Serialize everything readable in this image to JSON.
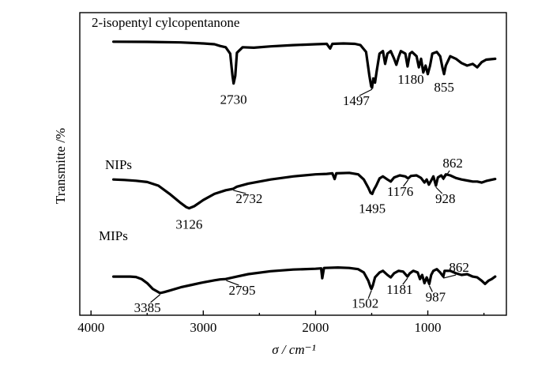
{
  "chart_data": {
    "type": "line",
    "xlabel": "σ / cm⁻¹",
    "ylabel": "Transmitte /%",
    "xlim": [
      4100,
      300
    ],
    "x_reversed": true,
    "xticks": [
      4000,
      3000,
      2000,
      1000
    ],
    "y_ticks_shown": false,
    "grid": false,
    "series": [
      {
        "name": "2-isopentyl cylcopentanone",
        "peak_labels": [
          {
            "x": 2730,
            "text": "2730"
          },
          {
            "x": 1497,
            "text": "1497"
          },
          {
            "x": 1180,
            "text": "1180"
          },
          {
            "x": 855,
            "text": "855"
          }
        ],
        "points": [
          [
            3800,
            0.9
          ],
          [
            3500,
            0.898
          ],
          [
            3200,
            0.892
          ],
          [
            3000,
            0.88
          ],
          [
            2900,
            0.87
          ],
          [
            2850,
            0.85
          ],
          [
            2800,
            0.835
          ],
          [
            2760,
            0.76
          ],
          [
            2740,
            0.5
          ],
          [
            2730,
            0.41
          ],
          [
            2715,
            0.5
          ],
          [
            2700,
            0.77
          ],
          [
            2650,
            0.835
          ],
          [
            2550,
            0.83
          ],
          [
            2400,
            0.845
          ],
          [
            2200,
            0.86
          ],
          [
            2000,
            0.87
          ],
          [
            1900,
            0.875
          ],
          [
            1870,
            0.82
          ],
          [
            1850,
            0.875
          ],
          [
            1750,
            0.88
          ],
          [
            1650,
            0.875
          ],
          [
            1600,
            0.86
          ],
          [
            1550,
            0.78
          ],
          [
            1520,
            0.5
          ],
          [
            1505,
            0.38
          ],
          [
            1497,
            0.36
          ],
          [
            1485,
            0.47
          ],
          [
            1470,
            0.42
          ],
          [
            1455,
            0.56
          ],
          [
            1430,
            0.76
          ],
          [
            1400,
            0.79
          ],
          [
            1380,
            0.64
          ],
          [
            1360,
            0.76
          ],
          [
            1330,
            0.79
          ],
          [
            1300,
            0.7
          ],
          [
            1280,
            0.63
          ],
          [
            1260,
            0.72
          ],
          [
            1240,
            0.79
          ],
          [
            1200,
            0.76
          ],
          [
            1180,
            0.61
          ],
          [
            1160,
            0.76
          ],
          [
            1140,
            0.78
          ],
          [
            1100,
            0.73
          ],
          [
            1080,
            0.6
          ],
          [
            1060,
            0.7
          ],
          [
            1040,
            0.54
          ],
          [
            1020,
            0.62
          ],
          [
            1000,
            0.52
          ],
          [
            980,
            0.62
          ],
          [
            960,
            0.76
          ],
          [
            920,
            0.78
          ],
          [
            890,
            0.73
          ],
          [
            870,
            0.6
          ],
          [
            855,
            0.52
          ],
          [
            840,
            0.62
          ],
          [
            800,
            0.73
          ],
          [
            750,
            0.7
          ],
          [
            700,
            0.65
          ],
          [
            650,
            0.62
          ],
          [
            600,
            0.64
          ],
          [
            560,
            0.6
          ],
          [
            520,
            0.66
          ],
          [
            480,
            0.69
          ],
          [
            400,
            0.7
          ]
        ]
      },
      {
        "name": "NIPs",
        "peak_labels": [
          {
            "x": 3126,
            "text": "3126"
          },
          {
            "x": 2732,
            "text": "2732"
          },
          {
            "x": 1495,
            "text": "1495"
          },
          {
            "x": 1176,
            "text": "1176"
          },
          {
            "x": 928,
            "text": "928"
          },
          {
            "x": 862,
            "text": "862"
          }
        ],
        "points": [
          [
            3800,
            0.56
          ],
          [
            3700,
            0.555
          ],
          [
            3600,
            0.548
          ],
          [
            3500,
            0.535
          ],
          [
            3400,
            0.5
          ],
          [
            3300,
            0.42
          ],
          [
            3200,
            0.33
          ],
          [
            3150,
            0.29
          ],
          [
            3126,
            0.28
          ],
          [
            3080,
            0.3
          ],
          [
            3000,
            0.36
          ],
          [
            2900,
            0.42
          ],
          [
            2800,
            0.455
          ],
          [
            2732,
            0.47
          ],
          [
            2700,
            0.49
          ],
          [
            2600,
            0.52
          ],
          [
            2400,
            0.56
          ],
          [
            2200,
            0.59
          ],
          [
            2000,
            0.61
          ],
          [
            1900,
            0.615
          ],
          [
            1850,
            0.62
          ],
          [
            1830,
            0.565
          ],
          [
            1815,
            0.62
          ],
          [
            1700,
            0.625
          ],
          [
            1620,
            0.61
          ],
          [
            1570,
            0.56
          ],
          [
            1530,
            0.48
          ],
          [
            1510,
            0.43
          ],
          [
            1495,
            0.42
          ],
          [
            1480,
            0.46
          ],
          [
            1460,
            0.5
          ],
          [
            1430,
            0.57
          ],
          [
            1400,
            0.59
          ],
          [
            1360,
            0.56
          ],
          [
            1330,
            0.54
          ],
          [
            1300,
            0.58
          ],
          [
            1250,
            0.6
          ],
          [
            1200,
            0.59
          ],
          [
            1176,
            0.57
          ],
          [
            1150,
            0.595
          ],
          [
            1100,
            0.6
          ],
          [
            1060,
            0.575
          ],
          [
            1030,
            0.53
          ],
          [
            1010,
            0.56
          ],
          [
            990,
            0.51
          ],
          [
            970,
            0.55
          ],
          [
            950,
            0.59
          ],
          [
            928,
            0.5
          ],
          [
            910,
            0.58
          ],
          [
            880,
            0.6
          ],
          [
            862,
            0.57
          ],
          [
            840,
            0.61
          ],
          [
            800,
            0.6
          ],
          [
            750,
            0.575
          ],
          [
            700,
            0.56
          ],
          [
            650,
            0.55
          ],
          [
            600,
            0.54
          ],
          [
            560,
            0.54
          ],
          [
            520,
            0.53
          ],
          [
            480,
            0.545
          ],
          [
            440,
            0.555
          ],
          [
            400,
            0.565
          ]
        ]
      },
      {
        "name": "MIPs",
        "peak_labels": [
          {
            "x": 3385,
            "text": "3385"
          },
          {
            "x": 2795,
            "text": "2795"
          },
          {
            "x": 1502,
            "text": "1502"
          },
          {
            "x": 1181,
            "text": "1181"
          },
          {
            "x": 987,
            "text": "987"
          },
          {
            "x": 862,
            "text": "862"
          }
        ],
        "points": [
          [
            3800,
            0.23
          ],
          [
            3650,
            0.23
          ],
          [
            3600,
            0.225
          ],
          [
            3550,
            0.2
          ],
          [
            3500,
            0.15
          ],
          [
            3450,
            0.08
          ],
          [
            3400,
            0.04
          ],
          [
            3385,
            0.03
          ],
          [
            3350,
            0.04
          ],
          [
            3300,
            0.06
          ],
          [
            3200,
            0.1
          ],
          [
            3100,
            0.13
          ],
          [
            3000,
            0.16
          ],
          [
            2900,
            0.185
          ],
          [
            2850,
            0.195
          ],
          [
            2800,
            0.2
          ],
          [
            2700,
            0.23
          ],
          [
            2600,
            0.26
          ],
          [
            2400,
            0.295
          ],
          [
            2200,
            0.315
          ],
          [
            2000,
            0.325
          ],
          [
            1950,
            0.33
          ],
          [
            1940,
            0.21
          ],
          [
            1925,
            0.335
          ],
          [
            1800,
            0.34
          ],
          [
            1700,
            0.335
          ],
          [
            1620,
            0.32
          ],
          [
            1570,
            0.28
          ],
          [
            1530,
            0.18
          ],
          [
            1510,
            0.1
          ],
          [
            1502,
            0.08
          ],
          [
            1490,
            0.12
          ],
          [
            1470,
            0.22
          ],
          [
            1430,
            0.28
          ],
          [
            1400,
            0.3
          ],
          [
            1360,
            0.25
          ],
          [
            1330,
            0.22
          ],
          [
            1300,
            0.27
          ],
          [
            1260,
            0.3
          ],
          [
            1220,
            0.29
          ],
          [
            1181,
            0.23
          ],
          [
            1160,
            0.27
          ],
          [
            1130,
            0.3
          ],
          [
            1090,
            0.28
          ],
          [
            1070,
            0.2
          ],
          [
            1050,
            0.25
          ],
          [
            1030,
            0.15
          ],
          [
            1010,
            0.22
          ],
          [
            987,
            0.14
          ],
          [
            970,
            0.25
          ],
          [
            950,
            0.3
          ],
          [
            920,
            0.32
          ],
          [
            890,
            0.28
          ],
          [
            862,
            0.23
          ],
          [
            850,
            0.3
          ],
          [
            800,
            0.3
          ],
          [
            750,
            0.27
          ],
          [
            700,
            0.25
          ],
          [
            650,
            0.26
          ],
          [
            600,
            0.23
          ],
          [
            560,
            0.22
          ],
          [
            520,
            0.18
          ],
          [
            490,
            0.14
          ],
          [
            460,
            0.18
          ],
          [
            430,
            0.2
          ],
          [
            400,
            0.23
          ]
        ]
      }
    ]
  }
}
